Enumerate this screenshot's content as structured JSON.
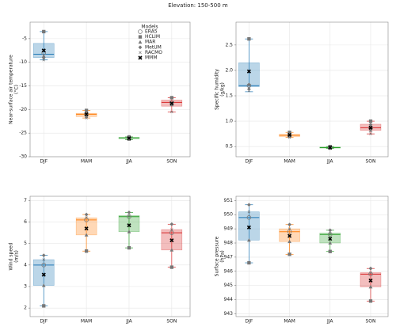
{
  "title": "Elevation: 150-500 m",
  "legend": {
    "title": "Models",
    "location": "upper center",
    "entries": [
      {
        "name": "ERA5",
        "marker": "circle",
        "color": "#777777"
      },
      {
        "name": "HCLIM",
        "marker": "square",
        "color": "#777777"
      },
      {
        "name": "MAR",
        "marker": "triangle",
        "color": "#777777"
      },
      {
        "name": "MetUM",
        "marker": "diamond",
        "color": "#777777"
      },
      {
        "name": "RACMO",
        "marker": "x",
        "color": "#777777"
      },
      {
        "name": "MMM",
        "marker": "bold-x",
        "color": "#000000"
      }
    ]
  },
  "chart_data": [
    {
      "type": "box",
      "ylabel": [
        "Near-surface air temperature",
        "(°C)"
      ],
      "categories": [
        "DJF",
        "MAM",
        "JJA",
        "SON"
      ],
      "colors": [
        "#1f77b4",
        "#ff7f0e",
        "#2ca02c",
        "#d62728"
      ],
      "ylim": [
        -30,
        -1.5
      ],
      "yticks": [
        -30,
        -25,
        -20,
        -15,
        -10,
        -5
      ],
      "grid": true,
      "legend": true,
      "boxes": [
        {
          "whislo": -9.5,
          "q1": -9.0,
          "med": -8.3,
          "q3": -6.0,
          "whishi": -3.5
        },
        {
          "whislo": -21.8,
          "q1": -21.5,
          "med": -21.0,
          "q3": -20.8,
          "whishi": -20.2
        },
        {
          "whislo": -26.4,
          "q1": -26.2,
          "med": -26.0,
          "q3": -25.9,
          "whishi": -25.8
        },
        {
          "whislo": -20.5,
          "q1": -19.3,
          "med": -18.5,
          "q3": -18.0,
          "whishi": -17.5
        }
      ],
      "points": [
        [
          -8.0,
          -21.0,
          -26.0,
          -18.5
        ],
        [
          -3.5,
          -20.2,
          -25.8,
          -17.5
        ],
        [
          -8.7,
          -21.5,
          -26.3,
          -19.0
        ],
        [
          -9.0,
          -21.3,
          -26.1,
          -18.8
        ],
        [
          -9.5,
          -21.8,
          -26.4,
          -20.5
        ],
        [
          -7.5,
          -21.0,
          -26.1,
          -18.7
        ]
      ]
    },
    {
      "type": "box",
      "ylabel": [
        "Specific humidity",
        "(g/kg)"
      ],
      "categories": [
        "DJF",
        "MAM",
        "JJA",
        "SON"
      ],
      "colors": [
        "#1f77b4",
        "#ff7f0e",
        "#2ca02c",
        "#d62728"
      ],
      "ylim": [
        0.3,
        2.95
      ],
      "yticks": [
        0.5,
        {
          "value": 1,
          "label": "1.0"
        },
        1.5,
        {
          "value": 2,
          "label": "2.0"
        },
        2.5
      ],
      "grid": true,
      "legend": false,
      "boxes": [
        {
          "whislo": 1.58,
          "q1": 1.68,
          "med": 1.7,
          "q3": 2.15,
          "whishi": 2.62
        },
        {
          "whislo": 0.68,
          "q1": 0.7,
          "med": 0.72,
          "q3": 0.74,
          "whishi": 0.78
        },
        {
          "whislo": 0.46,
          "q1": 0.47,
          "med": 0.48,
          "q3": 0.49,
          "whishi": 0.5
        },
        {
          "whislo": 0.75,
          "q1": 0.82,
          "med": 0.87,
          "q3": 0.94,
          "whishi": 1.0
        }
      ],
      "points": [
        [
          1.7,
          0.72,
          0.48,
          0.87
        ],
        [
          2.62,
          0.78,
          0.5,
          1.0
        ],
        [
          1.65,
          0.7,
          0.47,
          0.82
        ],
        [
          1.72,
          0.75,
          0.49,
          0.93
        ],
        [
          1.6,
          0.68,
          0.46,
          0.75
        ],
        [
          1.98,
          0.73,
          0.48,
          0.87
        ]
      ]
    },
    {
      "type": "box",
      "ylabel": [
        "Wind speed",
        "(m/s)"
      ],
      "categories": [
        "DJF",
        "MAM",
        "JJA",
        "SON"
      ],
      "colors": [
        "#1f77b4",
        "#ff7f0e",
        "#2ca02c",
        "#d62728"
      ],
      "ylim": [
        1.6,
        7.2
      ],
      "yticks": [
        2,
        3,
        4,
        5,
        6,
        7
      ],
      "grid": true,
      "legend": false,
      "boxes": [
        {
          "whislo": 2.1,
          "q1": 3.05,
          "med": 4.0,
          "q3": 4.25,
          "whishi": 4.45
        },
        {
          "whislo": 4.65,
          "q1": 5.4,
          "med": 6.1,
          "q3": 6.2,
          "whishi": 6.35
        },
        {
          "whislo": 4.8,
          "q1": 5.55,
          "med": 6.25,
          "q3": 6.3,
          "whishi": 6.45
        },
        {
          "whislo": 3.9,
          "q1": 4.7,
          "med": 5.5,
          "q3": 5.65,
          "whishi": 5.9
        }
      ],
      "points": [
        [
          4.0,
          6.1,
          6.25,
          5.5
        ],
        [
          2.1,
          4.65,
          4.8,
          3.9
        ],
        [
          3.05,
          5.4,
          5.55,
          4.7
        ],
        [
          4.45,
          6.35,
          6.45,
          5.9
        ],
        [
          4.25,
          6.2,
          6.3,
          5.65
        ],
        [
          3.55,
          5.7,
          5.85,
          5.15
        ]
      ]
    },
    {
      "type": "box",
      "ylabel": [
        "Surface pressure",
        "(hPa)"
      ],
      "categories": [
        "DJF",
        "MAM",
        "JJA",
        "SON"
      ],
      "colors": [
        "#1f77b4",
        "#ff7f0e",
        "#2ca02c",
        "#d62728"
      ],
      "ylim": [
        942.8,
        951.3
      ],
      "yticks": [
        943,
        944,
        945,
        946,
        947,
        948,
        949,
        950,
        951
      ],
      "grid": true,
      "legend": false,
      "boxes": [
        {
          "whislo": 946.6,
          "q1": 948.2,
          "med": 949.8,
          "q3": 950.2,
          "whishi": 950.7
        },
        {
          "whislo": 947.2,
          "q1": 948.1,
          "med": 948.8,
          "q3": 949.0,
          "whishi": 949.3
        },
        {
          "whislo": 947.4,
          "q1": 948.0,
          "med": 948.6,
          "q3": 948.7,
          "whishi": 948.9
        },
        {
          "whislo": 943.9,
          "q1": 944.9,
          "med": 945.8,
          "q3": 945.9,
          "whishi": 946.2
        }
      ],
      "points": [
        [
          949.8,
          948.8,
          948.6,
          945.8
        ],
        [
          946.6,
          947.2,
          947.4,
          943.9
        ],
        [
          948.2,
          948.1,
          948.0,
          944.9
        ],
        [
          950.7,
          949.3,
          948.9,
          946.2
        ],
        [
          950.2,
          949.0,
          948.7,
          945.9
        ],
        [
          949.1,
          948.5,
          948.3,
          945.35
        ]
      ]
    }
  ]
}
